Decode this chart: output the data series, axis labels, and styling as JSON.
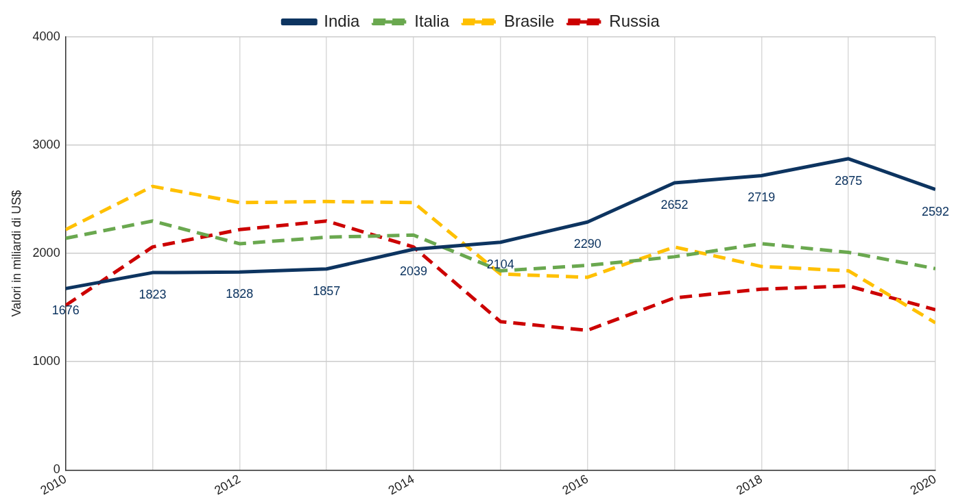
{
  "chart_data": {
    "type": "line",
    "ylabel": "Valori in miliardi di US$",
    "x": [
      2010,
      2011,
      2012,
      2013,
      2014,
      2015,
      2016,
      2017,
      2018,
      2019,
      2020
    ],
    "series": [
      {
        "name": "India",
        "color": "#0d3460",
        "line_style": "solid",
        "values": [
          1676,
          1823,
          1828,
          1857,
          2039,
          2104,
          2290,
          2652,
          2719,
          2875,
          2592
        ],
        "value_labels": [
          "1676",
          "1823",
          "1828",
          "1857",
          "2039",
          "2104",
          "2290",
          "2652",
          "2719",
          "2875",
          "2592"
        ]
      },
      {
        "name": "Italia",
        "color": "#6aa84f",
        "line_style": "dashed",
        "values": [
          2140,
          2300,
          2090,
          2150,
          2170,
          1840,
          1890,
          1970,
          2090,
          2010,
          1860
        ]
      },
      {
        "name": "Brasile",
        "color": "#ffc000",
        "line_style": "dashed",
        "values": [
          2220,
          2620,
          2470,
          2480,
          2470,
          1810,
          1780,
          2060,
          1880,
          1840,
          1360
        ]
      },
      {
        "name": "Russia",
        "color": "#cc0000",
        "line_style": "dashed",
        "values": [
          1520,
          2060,
          2220,
          2300,
          2060,
          1370,
          1290,
          1590,
          1670,
          1700,
          1480
        ]
      }
    ],
    "xlim": [
      2010,
      2020
    ],
    "xticks": [
      2010,
      {
        "value": 2011,
        "label": null
      },
      2012,
      {
        "value": 2013,
        "label": null
      },
      2014,
      {
        "value": 2015,
        "label": null
      },
      2016,
      {
        "value": 2017,
        "label": null
      },
      2018,
      {
        "value": 2019,
        "label": null
      },
      2020
    ],
    "ylim": [
      0,
      4000
    ],
    "yticks": [
      0,
      1000,
      2000,
      3000,
      4000
    ],
    "grid": true,
    "legend": "top",
    "marker": "none"
  }
}
